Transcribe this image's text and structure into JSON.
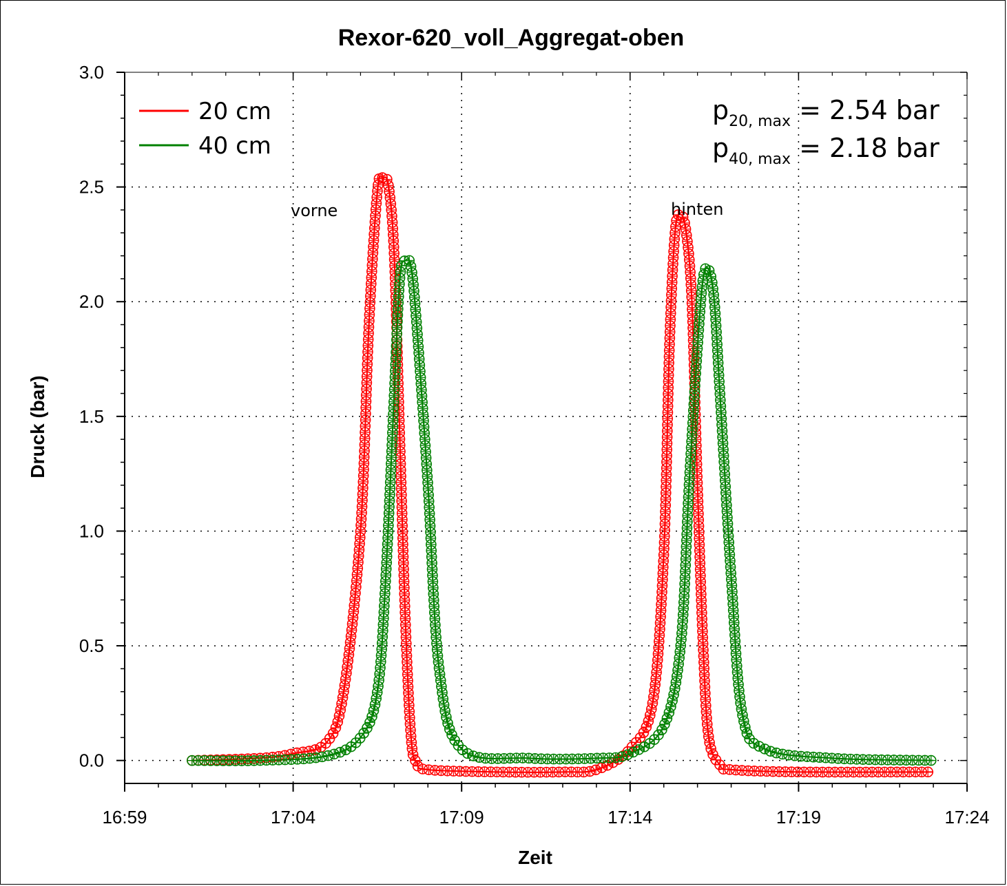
{
  "chart_data": {
    "type": "line",
    "title": "Rexor-620_voll_Aggregat-oben",
    "xlabel": "Zeit",
    "ylabel": "Druck (bar)",
    "xticks": [
      "16:59",
      "17:04",
      "17:09",
      "17:14",
      "17:19",
      "17:24"
    ],
    "yticks": [
      "0.0",
      "0.5",
      "1.0",
      "1.5",
      "2.0",
      "2.5",
      "3.0"
    ],
    "xlim": [
      "16:59",
      "17:24"
    ],
    "ylim": [
      -0.1,
      3.0
    ],
    "grid": true,
    "legend_position": "top-left",
    "annotations": {
      "peak1": "vorne",
      "peak2": "hinten",
      "p20_base": "p",
      "p20_sub": "20, max",
      "p20_val": " = 2.54 bar",
      "p40_base": "p",
      "p40_sub": "40, max",
      "p40_val": " = 2.18 bar"
    },
    "series": [
      {
        "name": "20 cm",
        "color": "#ff0000",
        "marker": "circle-cross",
        "x": [
          "17:01",
          "17:03",
          "17:04",
          "17:05",
          "17:05:30",
          "17:06",
          "17:06:15",
          "17:06:30",
          "17:06:40",
          "17:06:50",
          "17:07",
          "17:07:10",
          "17:07:20",
          "17:07:30",
          "17:07:40",
          "17:08",
          "17:10",
          "17:12",
          "17:13",
          "17:14",
          "17:14:40",
          "17:15",
          "17:15:10",
          "17:15:20",
          "17:15:30",
          "17:15:40",
          "17:15:50",
          "17:16",
          "17:16:10",
          "17:16:20",
          "17:16:40",
          "17:17",
          "17:19",
          "17:23"
        ],
        "y": [
          0.0,
          0.01,
          0.03,
          0.08,
          0.3,
          1.0,
          1.9,
          2.48,
          2.54,
          2.5,
          2.2,
          1.4,
          0.6,
          0.1,
          -0.01,
          -0.04,
          -0.05,
          -0.05,
          -0.04,
          0.05,
          0.25,
          0.9,
          1.8,
          2.3,
          2.38,
          2.3,
          2.0,
          1.2,
          0.5,
          0.1,
          -0.02,
          -0.04,
          -0.05,
          -0.05
        ]
      },
      {
        "name": "40 cm",
        "color": "#008000",
        "marker": "circle-cross",
        "x": [
          "17:01",
          "17:03",
          "17:05",
          "17:06",
          "17:06:30",
          "17:06:45",
          "17:07",
          "17:07:10",
          "17:07:20",
          "17:07:30",
          "17:07:40",
          "17:08",
          "17:08:20",
          "17:09",
          "17:11",
          "17:13",
          "17:14",
          "17:15",
          "17:15:30",
          "17:15:45",
          "17:16",
          "17:16:10",
          "17:16:20",
          "17:16:30",
          "17:16:40",
          "17:17",
          "17:17:20",
          "17:18",
          "17:20",
          "17:23"
        ],
        "y": [
          0.0,
          0.0,
          0.02,
          0.1,
          0.3,
          0.8,
          1.6,
          2.1,
          2.18,
          2.15,
          1.9,
          1.2,
          0.4,
          0.05,
          0.01,
          0.01,
          0.03,
          0.15,
          0.5,
          1.2,
          1.8,
          2.1,
          2.14,
          2.0,
          1.6,
          0.8,
          0.2,
          0.05,
          0.01,
          0.0
        ]
      }
    ]
  }
}
